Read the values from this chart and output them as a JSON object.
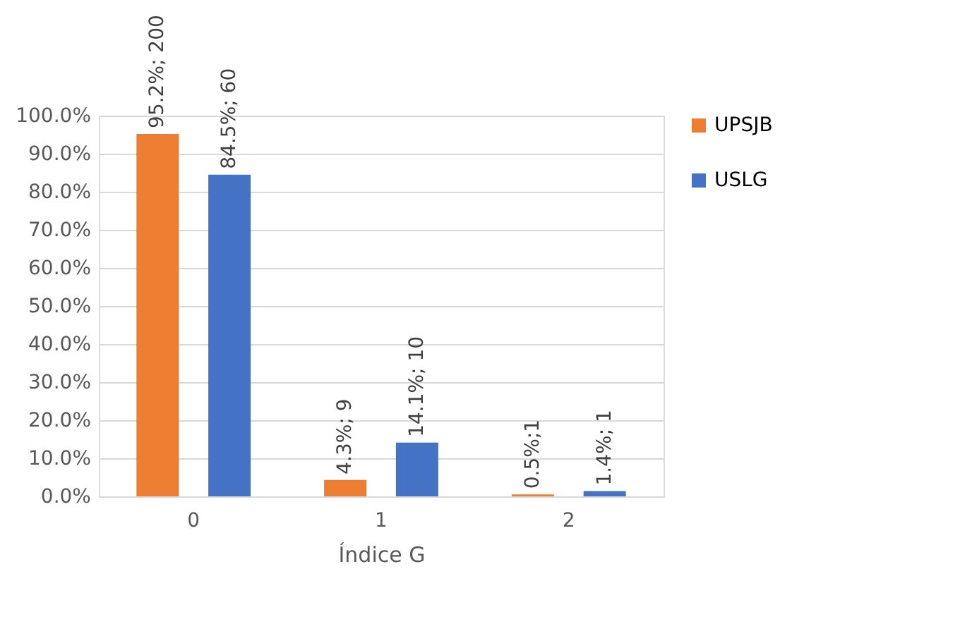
{
  "chart_data": {
    "type": "bar",
    "xlabel": "Índice G",
    "categories": [
      "0",
      "1",
      "2"
    ],
    "series": [
      {
        "name": "UPSJB",
        "color": "#ed7d31",
        "values": [
          95.2,
          4.3,
          0.5
        ],
        "value_labels": [
          "95.2%; 200",
          "4.3%; 9",
          "0.5%;1"
        ]
      },
      {
        "name": "USLG",
        "color": "#4472c4",
        "values": [
          84.5,
          14.1,
          1.4
        ],
        "value_labels": [
          "84.5%; 60",
          "14.1%; 10",
          "1.4%; 1"
        ]
      }
    ],
    "ylim": [
      0,
      100
    ],
    "yticks": [
      {
        "value": 0,
        "label": "0.0%"
      },
      {
        "value": 10,
        "label": "10.0%"
      },
      {
        "value": 20,
        "label": "20.0%"
      },
      {
        "value": 30,
        "label": "30.0%"
      },
      {
        "value": 40,
        "label": "40.0%"
      },
      {
        "value": 50,
        "label": "50.0%"
      },
      {
        "value": 60,
        "label": "60.0%"
      },
      {
        "value": 70,
        "label": "70.0%"
      },
      {
        "value": 80,
        "label": "80.0%"
      },
      {
        "value": 90,
        "label": "90.0%"
      },
      {
        "value": 100,
        "label": "100.0%"
      }
    ],
    "grid": "y",
    "legend": "right"
  }
}
